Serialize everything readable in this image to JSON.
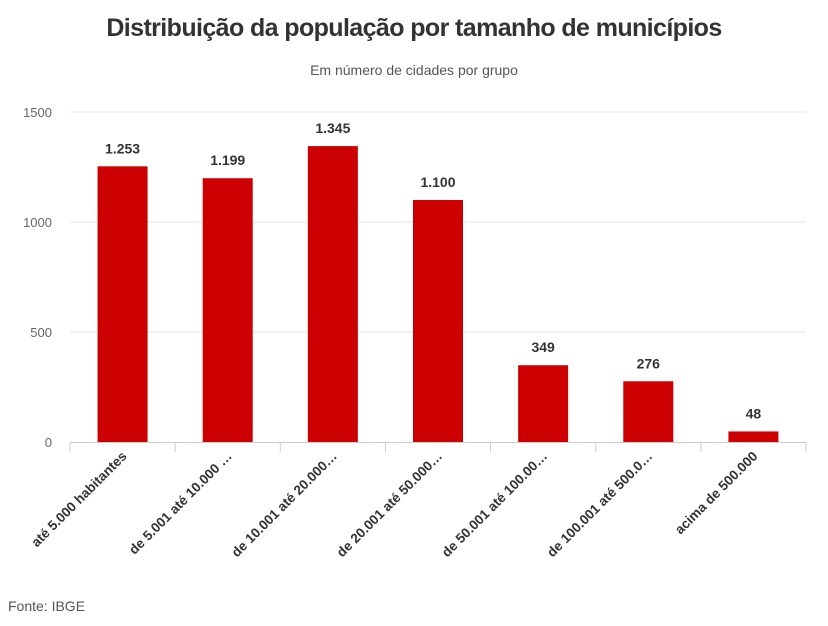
{
  "chart_data": {
    "type": "bar",
    "title": "Distribuição da população por tamanho de municípios",
    "subtitle": "Em número de cidades por grupo",
    "categories": [
      "até 5.000 habitantes",
      "de 5.001 até 10.000 …",
      "de 10.001 até 20.000…",
      "de 20.001 até 50.000…",
      "de 50.001 até 100.00…",
      "de 100.001 até 500.0…",
      "acima de 500.000"
    ],
    "values": [
      1253,
      1199,
      1345,
      1100,
      349,
      276,
      48
    ],
    "value_labels": [
      "1.253",
      "1.199",
      "1.345",
      "1.100",
      "349",
      "276",
      "48"
    ],
    "y_ticks": [
      0,
      500,
      1000,
      1500
    ],
    "y_tick_labels": [
      "0",
      "500",
      "1000",
      "1500"
    ],
    "ylim": [
      0,
      1500
    ],
    "bar_color": "#cc0000",
    "grid": true,
    "xlabel": "",
    "ylabel": ""
  },
  "credit": "Fonte: IBGE"
}
